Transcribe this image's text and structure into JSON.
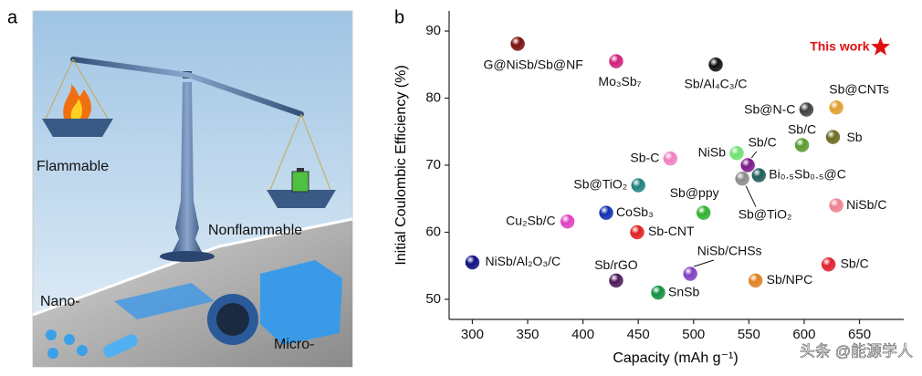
{
  "panel_a": {
    "letter": "a",
    "flammable": "Flammable",
    "nonflammable": "Nonflammable",
    "nano": "Nano-",
    "micro": "Micro-"
  },
  "chart_data": {
    "type": "scatter",
    "letter": "b",
    "x_label": "Capacity (mAh g⁻¹)",
    "y_label": "Initial Coulombic Efficiency  (%)",
    "xlim": [
      279,
      690
    ],
    "ylim": [
      47,
      93
    ],
    "xticks": [
      300,
      350,
      400,
      450,
      500,
      550,
      600,
      650
    ],
    "yticks": [
      50,
      60,
      70,
      80,
      90
    ],
    "point_labels": [
      "G@NiSb/Sb@NF",
      "Mo₃Sb₇",
      "Sb/Al₄C₃/C",
      "This work",
      "Sb@N-C",
      "Sb@CNTs",
      "Sb/C",
      "Sb",
      "Sb/C",
      "NiSb",
      "Bi₀.₅Sb₀.₅@C",
      "Sb@TiO₂",
      "Sb-C",
      "Sb@TiO₂",
      "Sb@ppy",
      "NiSb/C",
      "CoSb₃",
      "Cu₂Sb/C",
      "Sb-CNT",
      "NiSb/Al₂O₃/C",
      "Sb/rGO",
      "SnSb",
      "NiSb/CHSs",
      "Sb/NPC",
      "Sb/C"
    ],
    "x": [
      341,
      430,
      520,
      669,
      602,
      629,
      598,
      626,
      549,
      539,
      559,
      544,
      479,
      450,
      509,
      629,
      421,
      386,
      449,
      300,
      430,
      468,
      497,
      556,
      622
    ],
    "values": [
      88.1,
      85.5,
      85.0,
      87.6,
      78.3,
      78.6,
      73.0,
      74.2,
      70.0,
      71.8,
      68.5,
      68.0,
      71.0,
      67.0,
      62.9,
      64.0,
      62.9,
      61.6,
      60.0,
      55.5,
      52.8,
      51.0,
      53.8,
      52.8,
      55.2
    ],
    "colors": [
      "#7a1010",
      "#d0207a",
      "#111111",
      "#e01010",
      "#404040",
      "#e0a030",
      "#5a9a30",
      "#6a6a20",
      "#7a1a8a",
      "#70e070",
      "#1e5a5a",
      "#8a8a8a",
      "#f080c0",
      "#208080",
      "#30b030",
      "#f08090",
      "#1030b0",
      "#e040c0",
      "#e02020",
      "#101080",
      "#4a1a5a",
      "#109040",
      "#8040c0",
      "#e08020",
      "#e02030"
    ],
    "markers": [
      "circle",
      "circle",
      "circle",
      "star",
      "circle",
      "circle",
      "circle",
      "circle",
      "circle",
      "circle",
      "circle",
      "circle",
      "circle",
      "circle",
      "circle",
      "circle",
      "circle",
      "circle",
      "circle",
      "circle",
      "circle",
      "circle",
      "circle",
      "circle",
      "circle"
    ],
    "watermark": "头条 @能源学人"
  }
}
